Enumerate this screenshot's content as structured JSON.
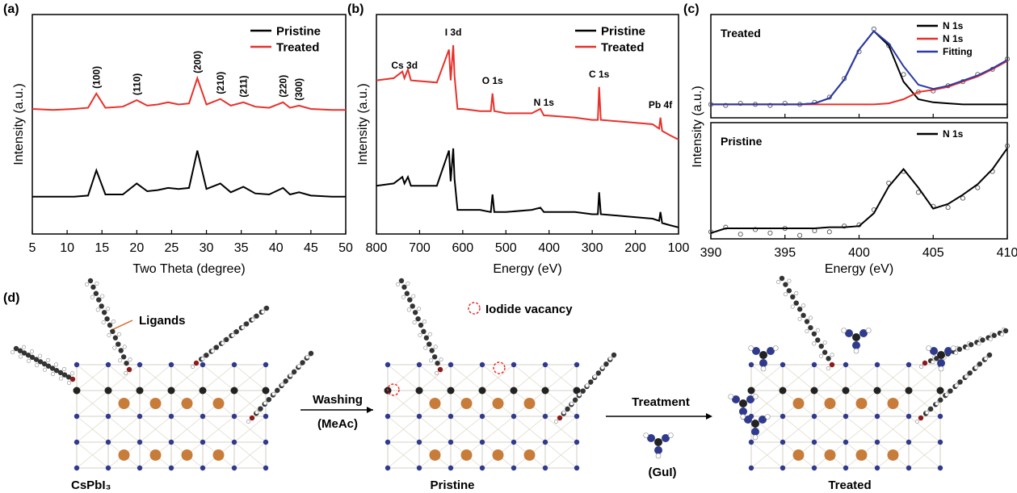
{
  "chart_data": [
    {
      "type": "line",
      "panel_label": "(a)",
      "xlabel": "Two Theta (degree)",
      "ylabel": "Intensity (a.u.)",
      "xlim": [
        5,
        50
      ],
      "xticks": [
        5,
        10,
        15,
        20,
        25,
        30,
        35,
        40,
        45,
        50
      ],
      "ylim": [
        0,
        100
      ],
      "legend": "upper right",
      "x": [
        5,
        8,
        11,
        13,
        14.2,
        15.5,
        18,
        20,
        21.5,
        23,
        24.5,
        26,
        27.5,
        28.7,
        30,
        32,
        33.5,
        35.3,
        37,
        39,
        41,
        42,
        43.3,
        45,
        48,
        50
      ],
      "series": [
        {
          "name": "Pristine",
          "color": "#000000",
          "values": [
            17,
            17,
            17,
            17.5,
            29,
            18,
            18,
            23,
            19.5,
            20,
            21,
            20.5,
            21,
            38,
            20.5,
            23,
            19,
            21.5,
            18.5,
            18,
            21,
            18,
            19,
            17.5,
            17,
            17
          ]
        },
        {
          "name": "Treated",
          "color": "#e8302a",
          "values": [
            57,
            56.5,
            57,
            57.5,
            64,
            57.5,
            58,
            61,
            58.5,
            59,
            60,
            59,
            59.5,
            71,
            59,
            61.5,
            58.5,
            60,
            58,
            57.5,
            60,
            57.5,
            58.5,
            57,
            56.5,
            56.5
          ]
        }
      ],
      "annotations": [
        {
          "label": "(100)",
          "x": 14.2
        },
        {
          "label": "(110)",
          "x": 20
        },
        {
          "label": "(200)",
          "x": 28.7
        },
        {
          "label": "(210)",
          "x": 32
        },
        {
          "label": "(211)",
          "x": 35.3
        },
        {
          "label": "(220)",
          "x": 41
        },
        {
          "label": "(300)",
          "x": 43.3
        }
      ]
    },
    {
      "type": "line",
      "panel_label": "(b)",
      "xlabel": "Energy (eV)",
      "ylabel": "Intensity (a.u.)",
      "xlim": [
        800,
        100
      ],
      "xticks": [
        800,
        700,
        600,
        500,
        400,
        300,
        200,
        100
      ],
      "ylim": [
        0,
        100
      ],
      "legend": "upper right",
      "x": [
        800,
        760,
        740,
        735,
        727,
        720,
        660,
        632,
        628,
        622,
        619,
        612,
        600,
        560,
        535,
        531,
        527,
        500,
        440,
        420,
        412,
        405,
        340,
        300,
        287,
        284,
        280,
        220,
        160,
        145,
        142,
        138,
        120,
        100
      ],
      "series": [
        {
          "name": "Pristine",
          "color": "#000000",
          "values": [
            22,
            23,
            26,
            23,
            26,
            22,
            22,
            38,
            24,
            39,
            25,
            11,
            11,
            11,
            10,
            18,
            10,
            10,
            11,
            12,
            10,
            10,
            10,
            9,
            9,
            19,
            9,
            8,
            7,
            6,
            10,
            5,
            4,
            3
          ]
        },
        {
          "name": "Treated",
          "color": "#e8302a",
          "values": [
            70,
            71,
            74,
            71,
            75,
            70,
            69,
            84,
            70,
            86,
            72,
            57,
            57,
            56,
            56,
            64,
            56,
            55,
            55,
            57,
            54,
            54,
            53,
            52,
            52,
            67,
            52,
            51,
            50,
            48,
            53,
            47,
            45,
            43
          ]
        }
      ],
      "annotations": [
        {
          "label": "Cs 3d",
          "x": 735
        },
        {
          "label": "I 3d",
          "x": 622
        },
        {
          "label": "O 1s",
          "x": 531
        },
        {
          "label": "N 1s",
          "x": 412
        },
        {
          "label": "C 1s",
          "x": 284
        },
        {
          "label": "Pb 4f",
          "x": 142
        }
      ]
    },
    {
      "type": "line",
      "panel_label": "(c)",
      "xlabel": "Energy (eV)",
      "ylabel": "Intensity (a.u.)",
      "xlim": [
        390,
        410
      ],
      "xticks": [
        390,
        395,
        400,
        405,
        410
      ],
      "subplots": [
        {
          "title": "Treated",
          "ylim": [
            0,
            100
          ],
          "legend": "upper right",
          "x": [
            390,
            391,
            392,
            393,
            394,
            395,
            396,
            397,
            398,
            399,
            400,
            401,
            402,
            403,
            404,
            405,
            406,
            407,
            408,
            409,
            410
          ],
          "series": [
            {
              "name": "N 1s",
              "color": "#000000",
              "values": [
                13,
                13,
                13,
                13,
                13,
                13,
                13,
                14,
                19,
                37,
                66,
                84,
                70,
                35,
                18,
                15,
                14,
                13,
                13,
                13,
                13
              ]
            },
            {
              "name": "N 1s",
              "color": "#e8302a",
              "values": [
                13,
                13,
                13,
                13,
                13,
                13,
                13,
                13,
                13,
                13,
                13,
                13,
                14,
                18,
                25,
                27,
                30,
                35,
                40,
                47,
                55
              ]
            },
            {
              "name": "Fitting",
              "color": "#2b3aa8",
              "values": [
                13,
                13,
                13,
                13,
                13,
                13,
                13,
                14,
                19,
                37,
                66,
                84,
                72,
                50,
                32,
                28,
                31,
                36,
                41,
                48,
                56
              ]
            }
          ],
          "points": {
            "color": "#555555",
            "x": [
              390,
              391,
              392,
              393,
              394,
              395,
              396,
              397,
              398,
              399,
              400,
              401,
              402,
              403,
              404,
              405,
              406,
              407,
              408,
              409,
              410
            ],
            "values": [
              13,
              12,
              14,
              13,
              12,
              14,
              13,
              15,
              20,
              38,
              64,
              86,
              70,
              42,
              25,
              26,
              31,
              35,
              42,
              47,
              57
            ]
          }
        },
        {
          "title": "Pristine",
          "ylim": [
            0,
            100
          ],
          "legend": "upper right",
          "x": [
            390,
            391,
            392,
            393,
            394,
            395,
            396,
            397,
            398,
            399,
            400,
            401,
            402,
            403,
            404,
            405,
            406,
            407,
            408,
            409,
            410
          ],
          "series": [
            {
              "name": "N 1s",
              "color": "#000000",
              "values": [
                5,
                9,
                9,
                9,
                9,
                9,
                9,
                9,
                10,
                10,
                11,
                22,
                45,
                60,
                44,
                26,
                30,
                38,
                47,
                60,
                78
              ]
            }
          ],
          "points": {
            "color": "#555555",
            "x": [
              390,
              391,
              392,
              393,
              394,
              395,
              396,
              397,
              398,
              399,
              400,
              401,
              402,
              403,
              404,
              405,
              406,
              407,
              408,
              409,
              410
            ],
            "values": [
              6,
              10,
              4,
              8,
              5,
              9,
              3,
              7,
              6,
              11,
              12,
              25,
              48,
              58,
              40,
              28,
              27,
              35,
              44,
              58,
              80
            ]
          }
        }
      ]
    }
  ],
  "diagram": {
    "panel_label": "(d)",
    "ligands": "Ligands",
    "iodide_vacancy": "Iodide vacancy",
    "washing": "Washing",
    "meac": "(MeAc)",
    "treatment": "Treatment",
    "gui": "(GuI)",
    "cspbi3": "CsPbI₃",
    "pristine": "Pristine",
    "treated": "Treated"
  }
}
